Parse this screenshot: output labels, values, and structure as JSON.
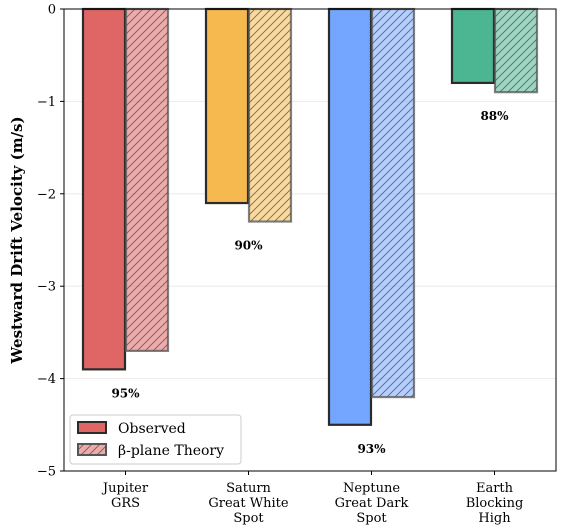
{
  "chart_data": {
    "type": "bar",
    "title": "",
    "xlabel": "",
    "ylabel": "Westward Drift Velocity (m/s)",
    "ylim": [
      -5,
      0
    ],
    "yticks": [
      "0",
      "−1",
      "−2",
      "−3",
      "−4",
      "−5"
    ],
    "ytick_values": [
      0,
      -1,
      -2,
      -3,
      -4,
      -5
    ],
    "grid": "horizontal",
    "legend_position": "lower-left",
    "categories": [
      [
        "Jupiter",
        "GRS"
      ],
      [
        "Saturn",
        "Great White",
        "Spot"
      ],
      [
        "Neptune",
        "Great Dark",
        "Spot"
      ],
      [
        "Earth",
        "Blocking",
        "High"
      ]
    ],
    "colors": [
      "#e06666",
      "#f6b94f",
      "#74a6ff",
      "#4cb591"
    ],
    "series": [
      {
        "name": "Observed",
        "values": [
          -3.9,
          -2.1,
          -4.5,
          -0.8
        ],
        "style": "solid"
      },
      {
        "name": "β-plane Theory",
        "values": [
          -3.7,
          -2.3,
          -4.2,
          -0.9
        ],
        "style": "hatched"
      }
    ],
    "annotations": [
      "95%",
      "90%",
      "93%",
      "88%"
    ]
  }
}
